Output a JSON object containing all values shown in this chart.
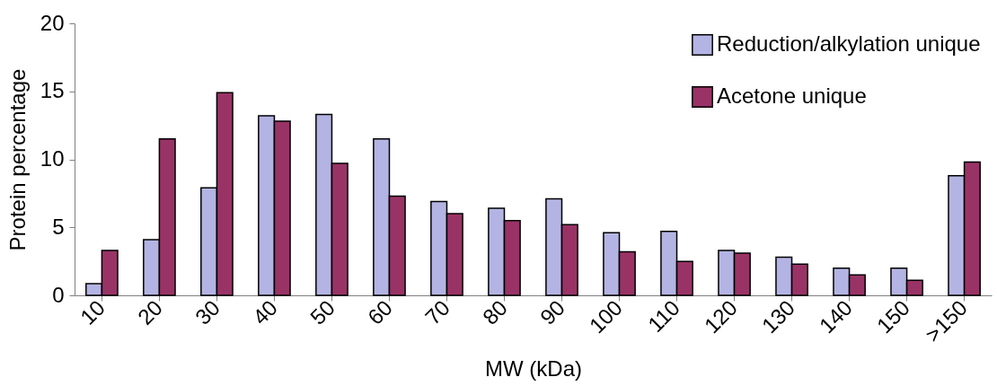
{
  "chart_data": {
    "type": "bar",
    "xlabel": "MW (kDa)",
    "ylabel": "Protein percentage",
    "categories": [
      "10",
      "20",
      "30",
      "40",
      "50",
      "60",
      "70",
      "80",
      "90",
      "100",
      "110",
      "120",
      "130",
      "140",
      "150",
      ">150"
    ],
    "series": [
      {
        "name": "Reduction/alkylation unique",
        "color": "#b4b4e4",
        "values": [
          0.85,
          4.1,
          7.9,
          13.2,
          13.3,
          11.5,
          6.9,
          6.4,
          7.1,
          4.6,
          4.7,
          3.3,
          2.8,
          2.0,
          2.0,
          8.8
        ]
      },
      {
        "name": "Acetone unique",
        "color": "#993366",
        "values": [
          3.3,
          11.5,
          14.9,
          12.8,
          9.7,
          7.3,
          6.0,
          5.5,
          5.2,
          3.2,
          2.5,
          3.1,
          2.3,
          1.5,
          1.1,
          9.8
        ]
      }
    ],
    "ylim": [
      0,
      20
    ],
    "yticks": [
      0,
      5,
      10,
      15,
      20
    ],
    "legend": "top right"
  }
}
